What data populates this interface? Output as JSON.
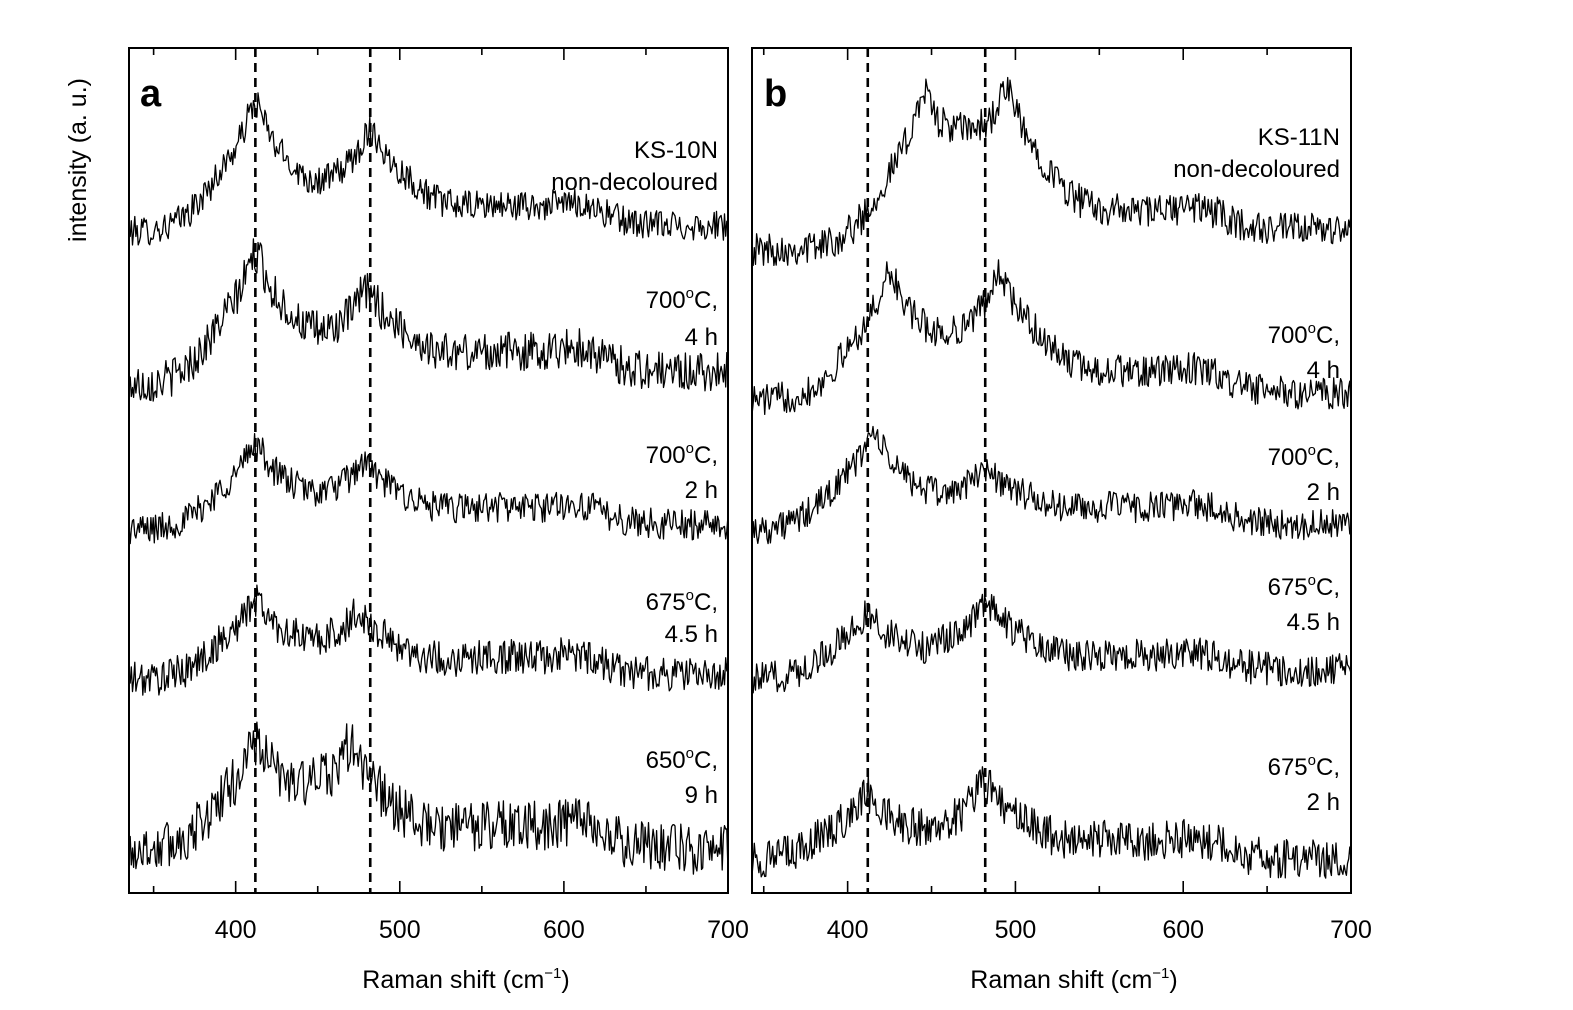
{
  "y_axis_label": "intensity (a. u.)",
  "x_axis_label_text": "Raman shift (cm",
  "x_axis_label_sup": "−1",
  "x_axis_label_close": ")",
  "chart_data": [
    {
      "type": "line",
      "panel": "a",
      "xlabel": "Raman shift (cm−1)",
      "ylabel": "intensity (a. u.)",
      "xlim": [
        335,
        700
      ],
      "ticks": [
        400,
        500,
        600,
        700
      ],
      "reference_lines": [
        412,
        482
      ],
      "series": [
        {
          "label_lines": [
            "KS-10N",
            "non-decoloured"
          ],
          "peaks": [
            [
              412,
              1.0
            ],
            [
              482,
              0.75
            ]
          ],
          "noise": 0.12,
          "end_level": 0.05
        },
        {
          "label_lines": [
            "700°C,",
            "4 h"
          ],
          "peaks": [
            [
              412,
              0.9
            ],
            [
              480,
              0.6
            ]
          ],
          "noise": 0.14,
          "end_level": 0.1
        },
        {
          "label_lines": [
            "700°C,",
            "2 h"
          ],
          "peaks": [
            [
              412,
              0.75
            ],
            [
              478,
              0.55
            ]
          ],
          "noise": 0.14,
          "end_level": 0.05
        },
        {
          "label_lines": [
            "675°C,",
            "4.5 h"
          ],
          "peaks": [
            [
              412,
              0.7
            ],
            [
              475,
              0.55
            ]
          ],
          "noise": 0.16,
          "end_level": 0.05
        },
        {
          "label_lines": [
            "650°C,",
            "9 h"
          ],
          "peaks": [
            [
              412,
              0.75
            ],
            [
              470,
              0.7
            ]
          ],
          "noise": 0.18,
          "end_level": 0.0
        }
      ]
    },
    {
      "type": "line",
      "panel": "b",
      "xlabel": "Raman shift (cm−1)",
      "ylabel": "",
      "xlim": [
        343,
        700
      ],
      "ticks": [
        400,
        500,
        600,
        700
      ],
      "reference_lines": [
        412,
        482
      ],
      "series": [
        {
          "label_lines": [
            "KS-11N",
            "non-decoloured"
          ],
          "peaks": [
            [
              445,
              1.0
            ],
            [
              495,
              0.95
            ]
          ],
          "noise": 0.12,
          "end_level": 0.15
        },
        {
          "label_lines": [
            "700°C,",
            "4 h"
          ],
          "peaks": [
            [
              425,
              0.9
            ],
            [
              490,
              0.85
            ]
          ],
          "noise": 0.12,
          "end_level": 0.05
        },
        {
          "label_lines": [
            "700°C,",
            "2 h"
          ],
          "peaks": [
            [
              415,
              0.85
            ],
            [
              482,
              0.5
            ]
          ],
          "noise": 0.14,
          "end_level": 0.05
        },
        {
          "label_lines": [
            "675°C,",
            "4.5 h"
          ],
          "peaks": [
            [
              412,
              0.6
            ],
            [
              482,
              0.65
            ]
          ],
          "noise": 0.16,
          "end_level": 0.1
        },
        {
          "label_lines": [
            "675°C,",
            "2 h"
          ],
          "peaks": [
            [
              412,
              0.6
            ],
            [
              482,
              0.65
            ]
          ],
          "noise": 0.18,
          "end_level": 0.0
        }
      ]
    }
  ]
}
